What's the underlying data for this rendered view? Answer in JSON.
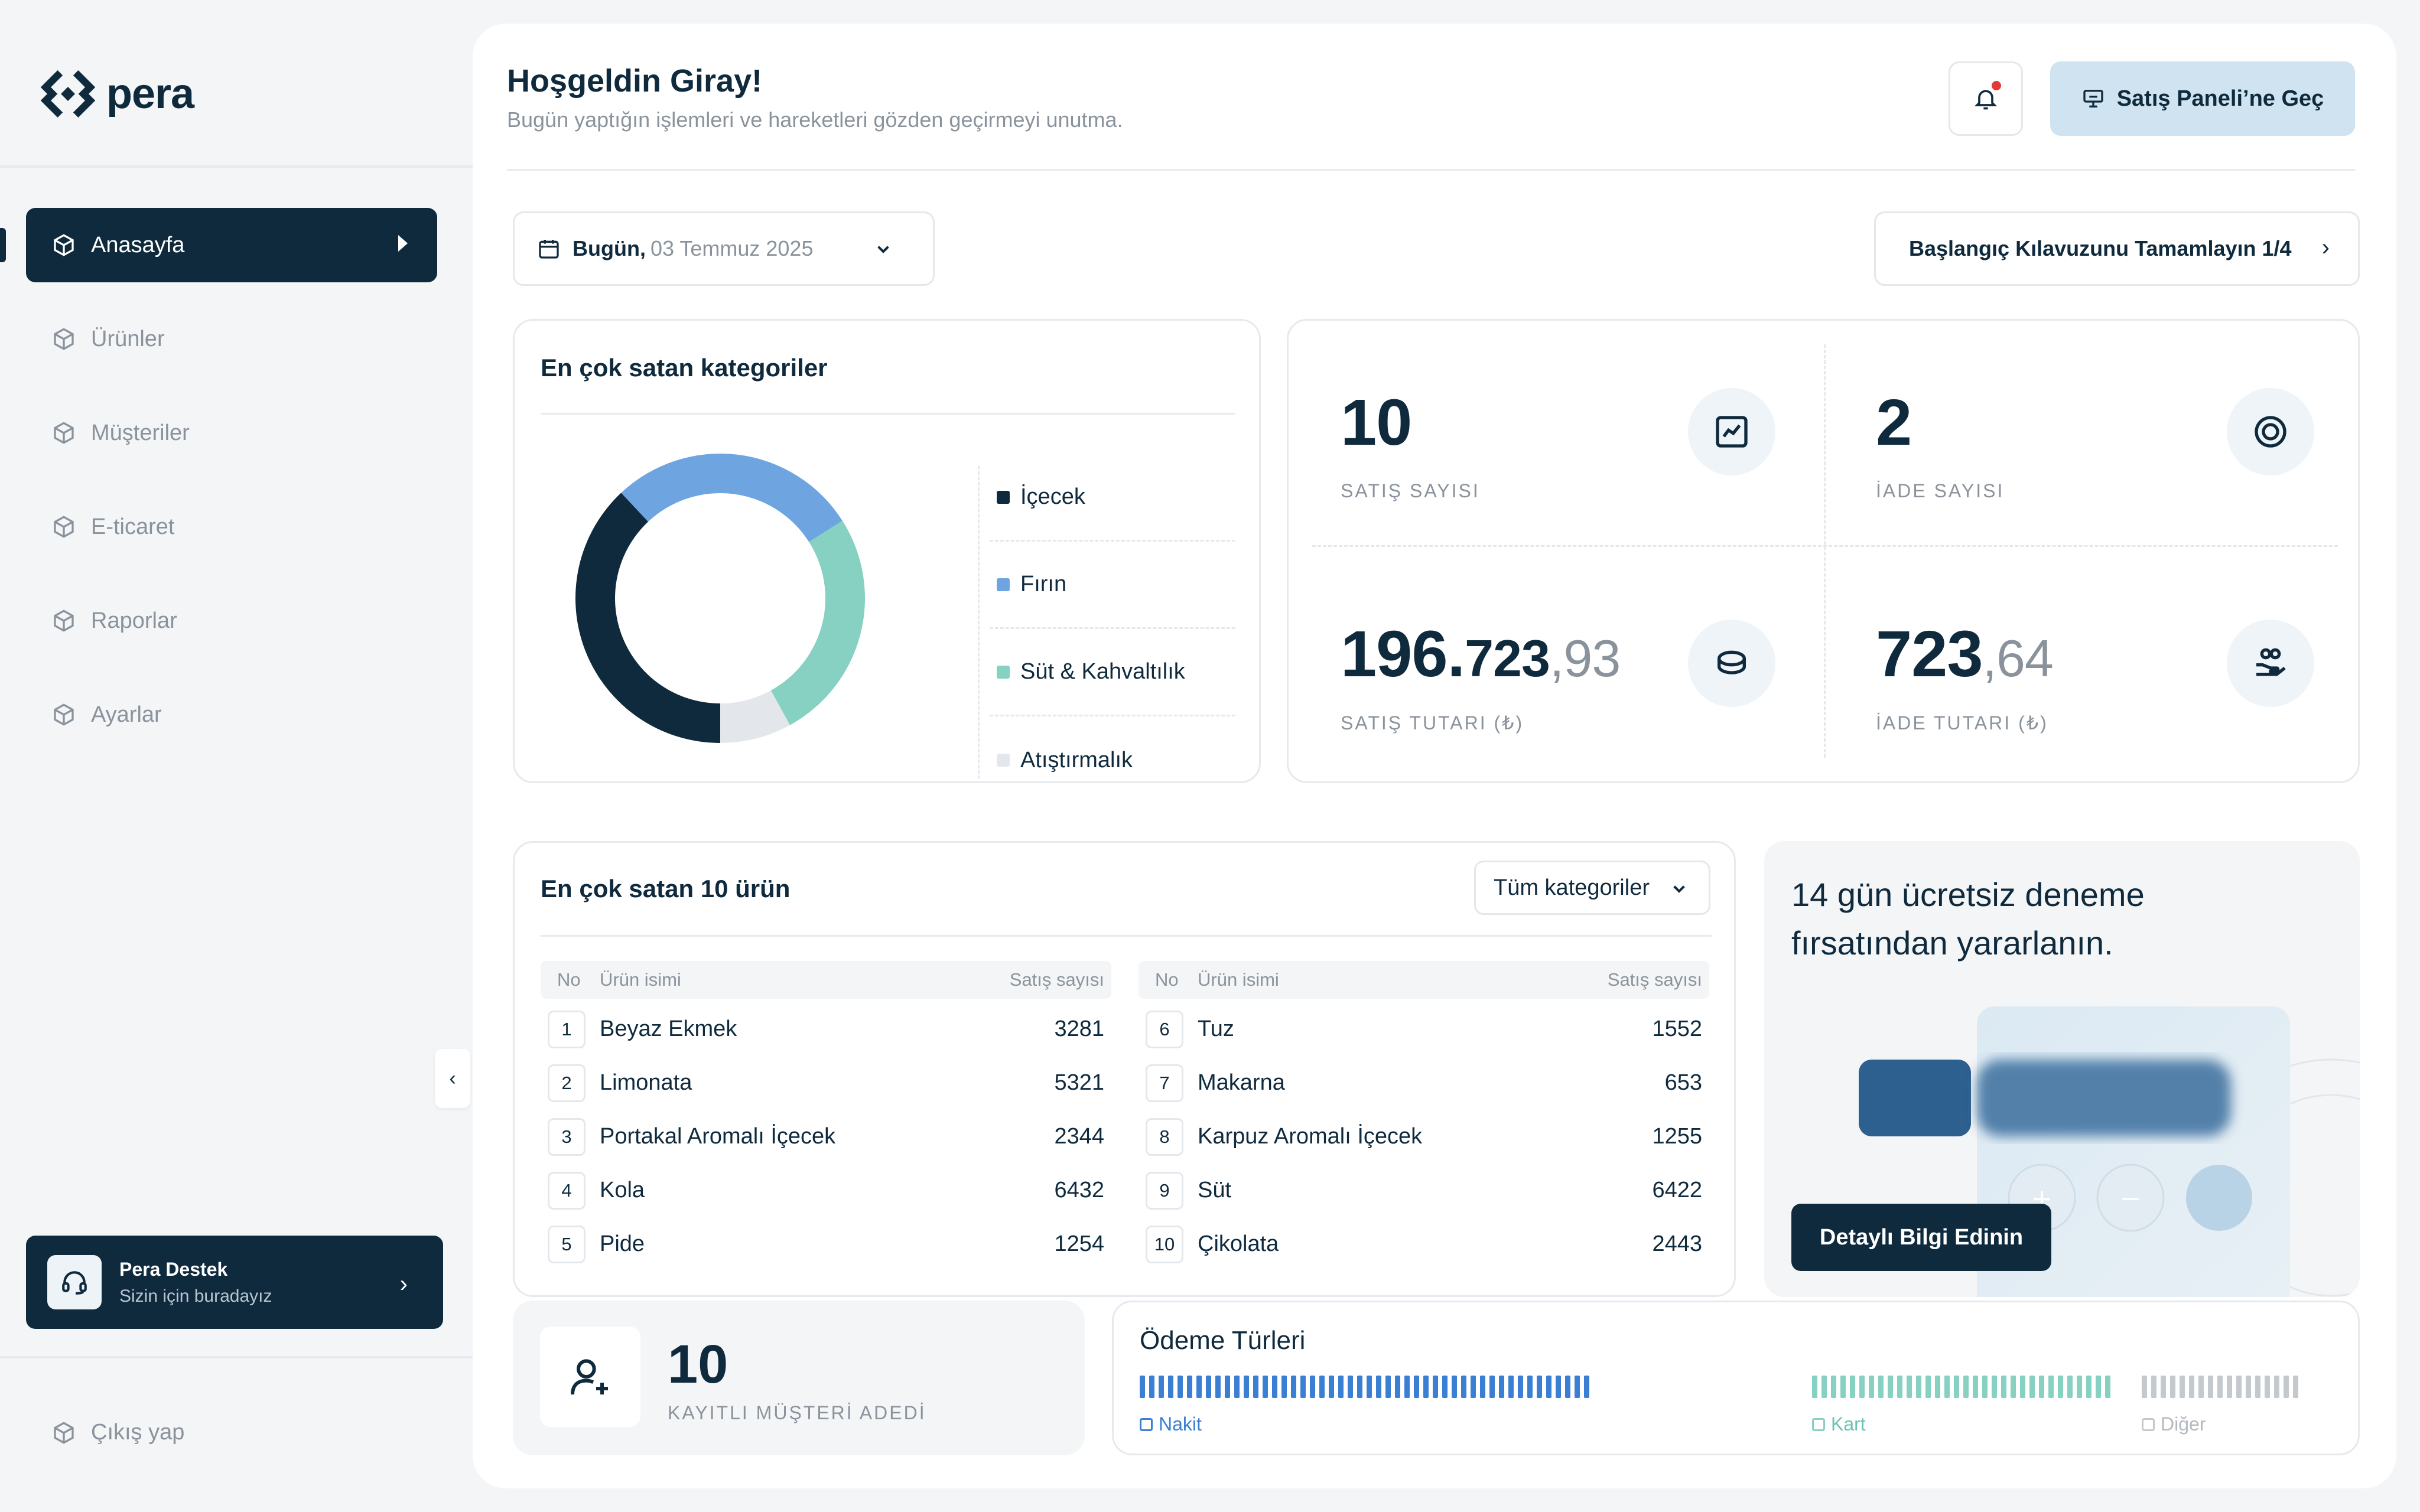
{
  "brand": {
    "name": "pera"
  },
  "sidebar": {
    "items": [
      {
        "label": "Anasayfa",
        "active": true
      },
      {
        "label": "Ürünler"
      },
      {
        "label": "Müşteriler"
      },
      {
        "label": "E-ticaret"
      },
      {
        "label": "Raporlar"
      },
      {
        "label": "Ayarlar"
      }
    ],
    "support": {
      "title": "Pera Destek",
      "subtitle": "Sizin için buradayız"
    },
    "logout": "Çıkış yap"
  },
  "header": {
    "title": "Hoşgeldin Giray!",
    "subtitle": "Bugün yaptığın işlemleri ve hareketleri gözden geçirmeyi unutma.",
    "sales_button": "Satış Paneli’ne Geç"
  },
  "date_picker": {
    "label": "Bugün,",
    "date": "03 Temmuz 2025"
  },
  "guide_button": "Başlangıç Kılavuzunu Tamamlayın 1/4",
  "categories": {
    "title": "En çok satan kategoriler",
    "legend": [
      {
        "name": "İçecek",
        "color": "#0f2a3d"
      },
      {
        "name": "Fırın",
        "color": "#6ea5e0"
      },
      {
        "name": "Süt & Kahvaltılık",
        "color": "#86d1c1"
      },
      {
        "name": "Atıştırmalık",
        "color": "#e3e7eb"
      }
    ]
  },
  "chart_data": {
    "type": "pie",
    "categories": [
      "İçecek",
      "Fırın",
      "Süt & Kahvaltılık",
      "Atıştırmalık"
    ],
    "values": [
      38,
      28,
      26,
      8
    ],
    "colors": [
      "#0f2a3d",
      "#6ea5e0",
      "#86d1c1",
      "#e3e7eb"
    ]
  },
  "stats": {
    "sales_count": {
      "value": "10",
      "label": "SATIŞ SAYISI"
    },
    "return_count": {
      "value": "2",
      "label": "İADE SAYISI"
    },
    "sales_total": {
      "int_a": "196.",
      "int_b": "723",
      "dec": ",93",
      "label": "SATIŞ TUTARI (₺)"
    },
    "return_total": {
      "int": "723",
      "dec": ",64",
      "label": "İADE TUTARI (₺)"
    }
  },
  "products": {
    "title": "En çok satan 10 ürün",
    "filter": "Tüm kategoriler",
    "headers": {
      "no": "No",
      "name": "Ürün isimi",
      "count": "Satış sayısı"
    },
    "left": [
      {
        "no": "1",
        "name": "Beyaz Ekmek",
        "count": "3281"
      },
      {
        "no": "2",
        "name": "Limonata",
        "count": "5321"
      },
      {
        "no": "3",
        "name": "Portakal Aromalı İçecek",
        "count": "2344"
      },
      {
        "no": "4",
        "name": "Kola",
        "count": "6432"
      },
      {
        "no": "5",
        "name": "Pide",
        "count": "1254"
      }
    ],
    "right": [
      {
        "no": "6",
        "name": "Tuz",
        "count": "1552"
      },
      {
        "no": "7",
        "name": "Makarna",
        "count": "653"
      },
      {
        "no": "8",
        "name": "Karpuz Aromalı İçecek",
        "count": "1255"
      },
      {
        "no": "9",
        "name": "Süt",
        "count": "6422"
      },
      {
        "no": "10",
        "name": "Çikolata",
        "count": "2443"
      }
    ]
  },
  "trial": {
    "title": "14 gün ücretsiz deneme fırsatından yararlanın.",
    "button": "Detaylı Bilgi Edinin"
  },
  "customers": {
    "value": "10",
    "label": "KAYITLI MÜŞTERİ ADEDİ"
  },
  "payments": {
    "title": "Ödeme Türleri",
    "types": [
      {
        "name": "Nakit",
        "color": "#3b7fd4",
        "share": 0.54
      },
      {
        "name": "Kart",
        "color": "#86d1c1",
        "share": 0.27
      },
      {
        "name": "Diğer",
        "color": "#c4c9ce",
        "share": 0.19
      }
    ]
  }
}
